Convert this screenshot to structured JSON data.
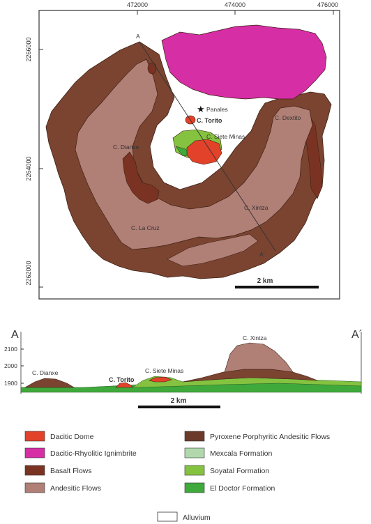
{
  "map": {
    "x_ticks": [
      "472000",
      "474000",
      "476000"
    ],
    "y_ticks": [
      "2266000",
      "2264000",
      "2262000"
    ],
    "section_start": "A",
    "section_end": "A´",
    "scale_label": "2 km",
    "places": {
      "panales": "Panales",
      "torito": "C. Torito",
      "siete_minas": "C. Siete Minas",
      "dextito": "C. Dextito",
      "dianxe": "C. Dianxe",
      "xintza": "C. Xintza",
      "la_cruz": "C. La Cruz"
    }
  },
  "section": {
    "start": "A",
    "end": "A´",
    "elevations": [
      "2100",
      "2000",
      "1900"
    ],
    "labels": {
      "dianxe": "C. Dianxe",
      "torito": "C. Torito",
      "siete_minas": "C. Siete Minas",
      "xintza": "C. Xintza"
    },
    "scale_label": "2 km"
  },
  "legend": {
    "items": [
      {
        "label": "Dacitic Dome",
        "color": "#e2422a"
      },
      {
        "label": "Dacitic-Rhyolitic Ignimbrite",
        "color": "#d62ea5"
      },
      {
        "label": "Basalt Flows",
        "color": "#7a3322"
      },
      {
        "label": "Andesitic Flows",
        "color": "#b07f76"
      },
      {
        "label": "Pyroxene Porphyritic Andesitic Flows",
        "color": "#6b3a2a"
      },
      {
        "label": "Mexcala Formation",
        "color": "#b0d8ac"
      },
      {
        "label": "Soyatal Formation",
        "color": "#84c240"
      },
      {
        "label": "El Doctor Formation",
        "color": "#3fa93c"
      },
      {
        "label": "Alluvium",
        "color": "#ffffff"
      }
    ]
  },
  "colors": {
    "outer_flows": "#7b4430",
    "andesitic": "#b07f76",
    "basalt": "#7a3322",
    "ignimbrite": "#d62ea5",
    "dome": "#e2422a",
    "soyatal": "#84c240",
    "el_doctor": "#3fa93c",
    "mexcala": "#b0d8ac"
  }
}
